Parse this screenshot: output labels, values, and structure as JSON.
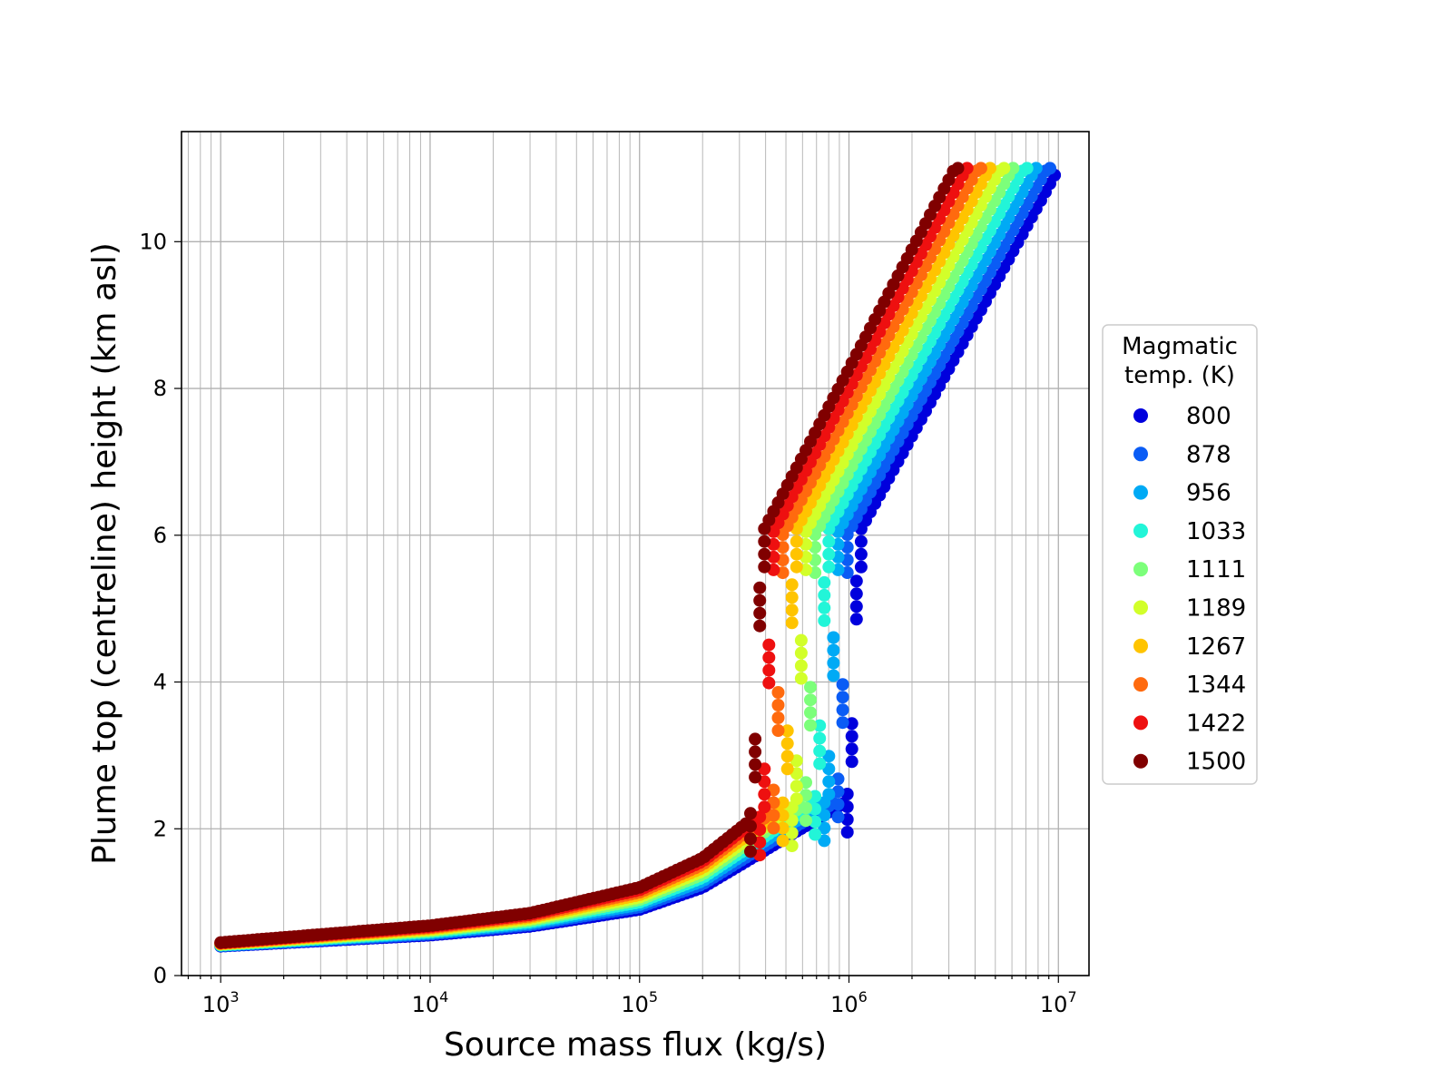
{
  "chart_data": {
    "type": "scatter",
    "title": "",
    "xlabel": "Source mass flux (kg/s)",
    "ylabel": "Plume top (centreline) height (km asl)",
    "xscale": "log",
    "xlim": [
      650,
      14000000
    ],
    "ylim": [
      0,
      11.5
    ],
    "grid": true,
    "x_ticks": [
      {
        "base": "10",
        "exp": "3",
        "value": 1000
      },
      {
        "base": "10",
        "exp": "4",
        "value": 10000
      },
      {
        "base": "10",
        "exp": "5",
        "value": 100000
      },
      {
        "base": "10",
        "exp": "6",
        "value": 1000000
      },
      {
        "base": "10",
        "exp": "7",
        "value": 10000000
      }
    ],
    "y_ticks": [
      "0",
      "2",
      "4",
      "6",
      "8",
      "10"
    ],
    "legend": {
      "title_line1": "Magmatic",
      "title_line2": "temp. (K)",
      "position": "right-outside"
    },
    "series": [
      {
        "name": "800",
        "color": "#0000dd"
      },
      {
        "name": "878",
        "color": "#0a5cf5"
      },
      {
        "name": "956",
        "color": "#00aaf5"
      },
      {
        "name": "1033",
        "color": "#22f5d8"
      },
      {
        "name": "1111",
        "color": "#7cff7a"
      },
      {
        "name": "1189",
        "color": "#d2ff2a"
      },
      {
        "name": "1267",
        "color": "#ffc400"
      },
      {
        "name": "1344",
        "color": "#ff6a0e"
      },
      {
        "name": "1422",
        "color": "#ee1010"
      },
      {
        "name": "1500",
        "color": "#800000"
      }
    ],
    "curve_model": {
      "description": "plume height vs mass flux per temperature; low-flux branch, steep rise near transition flux, linear-in-log branch capped at 11 km",
      "low_branch_x": [
        1000,
        10000,
        30000,
        100000,
        200000,
        300000
      ],
      "low_branch_y_1500": [
        0.45,
        0.68,
        0.85,
        1.2,
        1.6,
        2.0
      ],
      "low_branch_y_800": [
        0.4,
        0.55,
        0.67,
        0.9,
        1.2,
        1.5
      ],
      "transition_flux_800": 1100000,
      "transition_flux_1500": 380000,
      "upper_branch_start_y": 6.0,
      "upper_branch_end_y": 11.0,
      "upper_branch_end_flux_800": 10000000,
      "upper_branch_end_flux_1500": 3200000,
      "max_height": 11.0
    }
  }
}
